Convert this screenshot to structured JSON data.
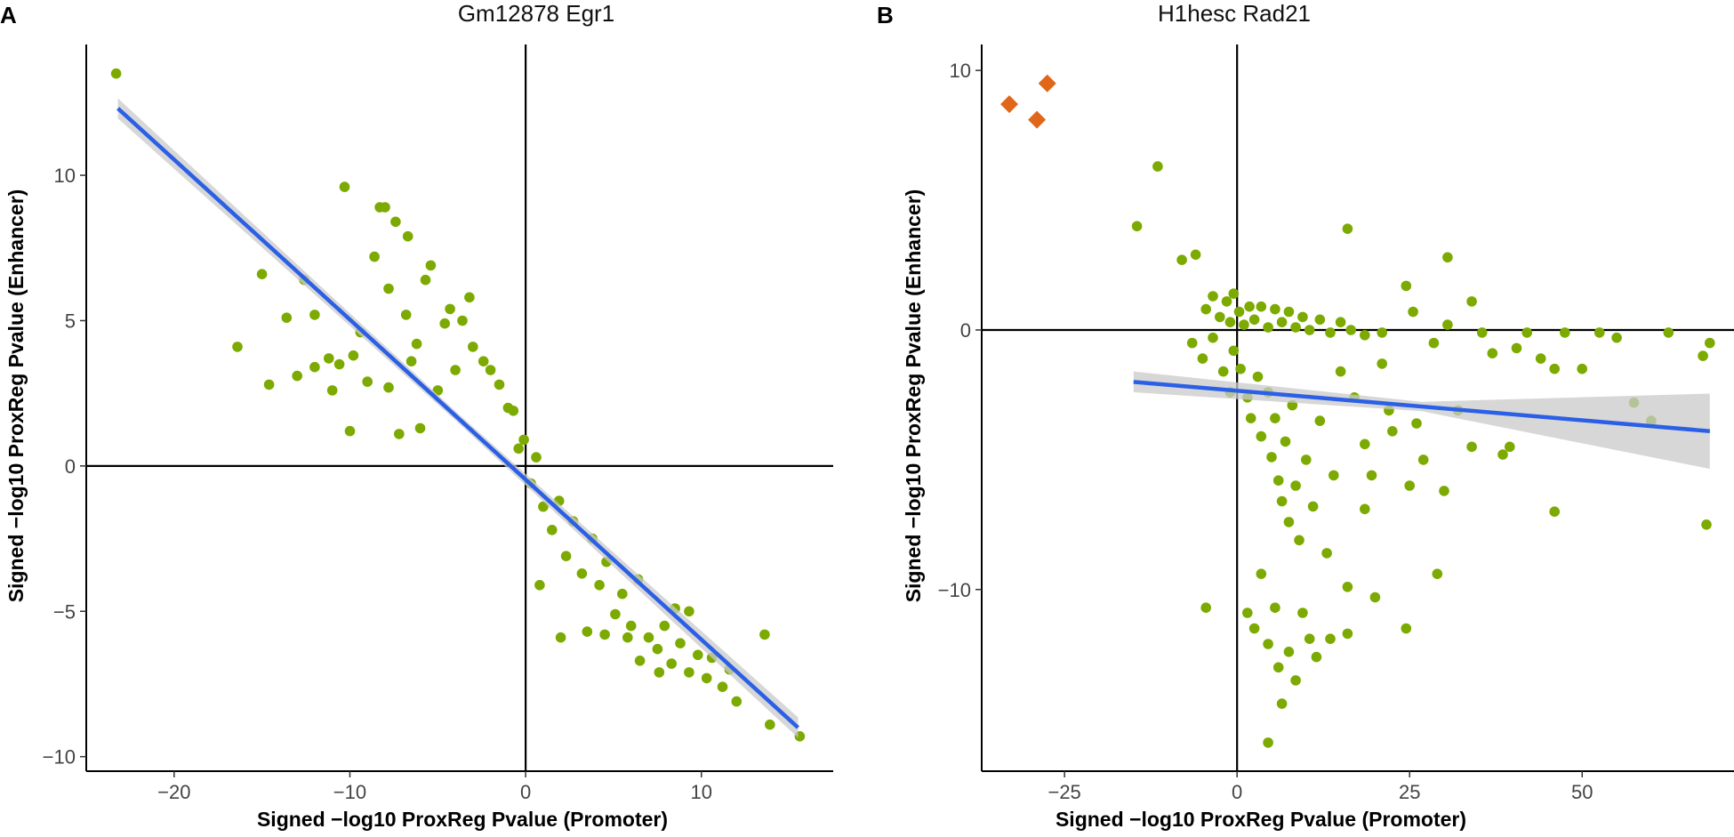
{
  "colors": {
    "point": "#7caa00",
    "outlier": "#e0661a",
    "fit_line": "#2a5fe6",
    "ci_band": "#c9c9c9",
    "axis": "#000000",
    "ref_line": "#000000"
  },
  "chart_data": [
    {
      "panel": "A",
      "type": "scatter",
      "title": "Gm12878 Egr1",
      "xlabel": "Signed −log10 ProxReg Pvalue (Promoter)",
      "ylabel": "Signed −log10 ProxReg Pvalue (Enhancer)",
      "xlim": [
        -25,
        17.5
      ],
      "ylim": [
        -10.5,
        14.5
      ],
      "x_ticks": [
        -20,
        -10,
        0,
        10
      ],
      "x_tick_labels": [
        "−20",
        "−10",
        "0",
        "10"
      ],
      "y_ticks": [
        -10,
        -5,
        0,
        5,
        10
      ],
      "y_tick_labels": [
        "−10",
        "−5",
        "0",
        "5",
        "10"
      ],
      "reference_lines": {
        "x": 0,
        "y": 0
      },
      "fit": {
        "x": [
          -23.2,
          15.5
        ],
        "y": [
          12.3,
          -9.0
        ],
        "ci_halfwidth_ends": 0.35
      },
      "outliers": [],
      "points": [
        [
          -23.3,
          13.5
        ],
        [
          -16.4,
          4.1
        ],
        [
          -15.0,
          6.6
        ],
        [
          -14.6,
          2.8
        ],
        [
          -13.6,
          5.1
        ],
        [
          -12.6,
          6.4
        ],
        [
          -12.0,
          5.2
        ],
        [
          -11.2,
          3.7
        ],
        [
          -11.0,
          2.6
        ],
        [
          -10.3,
          9.6
        ],
        [
          -10.0,
          1.2
        ],
        [
          -9.4,
          4.6
        ],
        [
          -9.0,
          2.9
        ],
        [
          -8.6,
          7.2
        ],
        [
          -8.3,
          8.9
        ],
        [
          -8.0,
          8.9
        ],
        [
          -7.8,
          6.1
        ],
        [
          -7.4,
          8.4
        ],
        [
          -7.2,
          1.1
        ],
        [
          -6.8,
          5.2
        ],
        [
          -6.5,
          3.6
        ],
        [
          -6.2,
          4.2
        ],
        [
          -6.0,
          1.3
        ],
        [
          -5.7,
          6.4
        ],
        [
          -5.4,
          6.9
        ],
        [
          -5.0,
          2.6
        ],
        [
          -4.6,
          4.9
        ],
        [
          -4.3,
          5.4
        ],
        [
          -4.0,
          3.3
        ],
        [
          -3.6,
          5.0
        ],
        [
          -3.2,
          5.8
        ],
        [
          -3.0,
          4.1
        ],
        [
          -2.4,
          3.6
        ],
        [
          -2.0,
          3.3
        ],
        [
          -1.5,
          2.8
        ],
        [
          -1.0,
          2.0
        ],
        [
          -0.7,
          1.9
        ],
        [
          -0.4,
          0.6
        ],
        [
          -0.1,
          0.9
        ],
        [
          0.3,
          -0.6
        ],
        [
          0.6,
          0.3
        ],
        [
          1.0,
          -1.4
        ],
        [
          1.5,
          -2.2
        ],
        [
          1.9,
          -1.2
        ],
        [
          2.3,
          -3.1
        ],
        [
          2.7,
          -1.9
        ],
        [
          3.2,
          -3.7
        ],
        [
          3.8,
          -2.5
        ],
        [
          4.2,
          -4.1
        ],
        [
          4.6,
          -3.3
        ],
        [
          5.1,
          -5.1
        ],
        [
          5.5,
          -4.4
        ],
        [
          6.0,
          -5.5
        ],
        [
          6.4,
          -3.9
        ],
        [
          7.0,
          -5.9
        ],
        [
          7.5,
          -6.3
        ],
        [
          7.9,
          -5.5
        ],
        [
          8.3,
          -6.8
        ],
        [
          8.8,
          -6.1
        ],
        [
          9.3,
          -7.1
        ],
        [
          9.8,
          -6.5
        ],
        [
          10.3,
          -7.3
        ],
        [
          10.6,
          -6.6
        ],
        [
          11.2,
          -7.6
        ],
        [
          11.6,
          -7.0
        ],
        [
          12.0,
          -8.1
        ],
        [
          2.0,
          -5.9
        ],
        [
          3.5,
          -5.7
        ],
        [
          4.5,
          -5.8
        ],
        [
          5.8,
          -5.9
        ],
        [
          6.5,
          -6.7
        ],
        [
          7.6,
          -7.1
        ],
        [
          9.3,
          -5.0
        ],
        [
          8.5,
          -4.9
        ],
        [
          13.6,
          -5.8
        ],
        [
          13.9,
          -8.9
        ],
        [
          15.6,
          -9.3
        ],
        [
          0.8,
          -4.1
        ],
        [
          -9.8,
          3.8
        ],
        [
          -10.6,
          3.5
        ],
        [
          -13.0,
          3.1
        ],
        [
          -12.0,
          3.4
        ],
        [
          -7.8,
          2.7
        ],
        [
          -6.7,
          7.9
        ]
      ]
    },
    {
      "panel": "B",
      "type": "scatter",
      "title": "H1hesc Rad21",
      "xlabel": "Signed −log10 ProxReg Pvalue (Promoter)",
      "ylabel": "Signed −log10 ProxReg Pvalue (Enhancer)",
      "xlim": [
        -37,
        72
      ],
      "ylim": [
        -17,
        11
      ],
      "x_ticks": [
        -25,
        0,
        25,
        50
      ],
      "x_tick_labels": [
        "−25",
        "0",
        "25",
        "50"
      ],
      "y_ticks": [
        -10,
        0,
        10
      ],
      "y_tick_labels": [
        "−10",
        "0",
        "10"
      ],
      "reference_lines": {
        "x": 0,
        "y": 0
      },
      "fit": {
        "x": [
          -15,
          68.5
        ],
        "y": [
          -2.0,
          -3.9
        ],
        "ci_halfwidth_ends": 0.4,
        "ci_halfwidth_right": 1.45
      },
      "outliers": [
        [
          -33,
          8.7
        ],
        [
          -27.5,
          9.5
        ],
        [
          -29,
          8.1
        ]
      ],
      "points": [
        [
          -11.5,
          6.3
        ],
        [
          -14.5,
          4.0
        ],
        [
          -8.0,
          2.7
        ],
        [
          -6.0,
          2.9
        ],
        [
          -4.5,
          0.8
        ],
        [
          -3.5,
          1.3
        ],
        [
          -2.5,
          0.5
        ],
        [
          -1.5,
          1.1
        ],
        [
          -1.0,
          0.3
        ],
        [
          -0.5,
          1.4
        ],
        [
          0.3,
          0.7
        ],
        [
          1.0,
          0.2
        ],
        [
          1.8,
          0.9
        ],
        [
          2.5,
          0.4
        ],
        [
          3.5,
          0.9
        ],
        [
          4.5,
          0.1
        ],
        [
          5.5,
          0.8
        ],
        [
          6.5,
          0.3
        ],
        [
          7.5,
          0.7
        ],
        [
          8.5,
          0.1
        ],
        [
          9.5,
          0.5
        ],
        [
          10.5,
          0.0
        ],
        [
          12.0,
          0.4
        ],
        [
          13.5,
          -0.1
        ],
        [
          15.0,
          0.3
        ],
        [
          16.5,
          0.0
        ],
        [
          18.5,
          -0.2
        ],
        [
          21.0,
          -0.1
        ],
        [
          -6.5,
          -0.5
        ],
        [
          -5.0,
          -1.1
        ],
        [
          -3.5,
          -0.3
        ],
        [
          -2.0,
          -1.6
        ],
        [
          -1.0,
          -2.4
        ],
        [
          -0.5,
          -0.8
        ],
        [
          0.5,
          -1.5
        ],
        [
          1.5,
          -2.6
        ],
        [
          2.0,
          -3.4
        ],
        [
          3.0,
          -1.8
        ],
        [
          3.5,
          -4.1
        ],
        [
          4.5,
          -2.4
        ],
        [
          5.0,
          -4.9
        ],
        [
          5.5,
          -3.4
        ],
        [
          6.0,
          -5.8
        ],
        [
          6.5,
          -6.6
        ],
        [
          7.0,
          -4.3
        ],
        [
          7.5,
          -7.4
        ],
        [
          8.0,
          -2.9
        ],
        [
          8.5,
          -6.0
        ],
        [
          9.0,
          -8.1
        ],
        [
          10.0,
          -5.0
        ],
        [
          11.0,
          -6.8
        ],
        [
          12.0,
          -3.5
        ],
        [
          13.0,
          -8.6
        ],
        [
          14.0,
          -5.6
        ],
        [
          15.0,
          -1.6
        ],
        [
          16.0,
          -9.9
        ],
        [
          17.0,
          -2.6
        ],
        [
          18.5,
          -4.4
        ],
        [
          19.5,
          -5.6
        ],
        [
          20.0,
          -10.3
        ],
        [
          21.0,
          -1.3
        ],
        [
          22.0,
          -3.1
        ],
        [
          1.5,
          -10.9
        ],
        [
          2.5,
          -11.5
        ],
        [
          3.5,
          -9.4
        ],
        [
          4.5,
          -12.1
        ],
        [
          5.5,
          -10.7
        ],
        [
          6.0,
          -13.0
        ],
        [
          6.5,
          -14.4
        ],
        [
          7.5,
          -12.4
        ],
        [
          8.5,
          -13.5
        ],
        [
          9.5,
          -10.9
        ],
        [
          10.5,
          -11.9
        ],
        [
          11.5,
          -12.6
        ],
        [
          13.5,
          -11.9
        ],
        [
          16.0,
          -11.7
        ],
        [
          4.5,
          -15.9
        ],
        [
          -4.5,
          -10.7
        ],
        [
          16.0,
          3.9
        ],
        [
          24.5,
          1.7
        ],
        [
          25.5,
          0.7
        ],
        [
          28.5,
          -0.5
        ],
        [
          30.5,
          2.8
        ],
        [
          30.5,
          0.2
        ],
        [
          34.0,
          1.1
        ],
        [
          35.5,
          -0.1
        ],
        [
          37.0,
          -0.9
        ],
        [
          39.5,
          -4.5
        ],
        [
          40.5,
          -0.7
        ],
        [
          42.0,
          -0.1
        ],
        [
          44.0,
          -1.1
        ],
        [
          46.0,
          -1.5
        ],
        [
          47.5,
          -0.1
        ],
        [
          50.0,
          -1.5
        ],
        [
          52.5,
          -0.1
        ],
        [
          55.0,
          -0.3
        ],
        [
          57.5,
          -2.8
        ],
        [
          60.0,
          -3.5
        ],
        [
          62.5,
          -0.1
        ],
        [
          67.5,
          -1.0
        ],
        [
          68.5,
          -0.5
        ],
        [
          68.0,
          -7.5
        ],
        [
          46.0,
          -7.0
        ],
        [
          29.0,
          -9.4
        ],
        [
          24.5,
          -11.5
        ],
        [
          25.0,
          -6.0
        ],
        [
          27.0,
          -5.0
        ],
        [
          30.0,
          -6.2
        ],
        [
          32.0,
          -3.1
        ],
        [
          34.0,
          -4.5
        ],
        [
          38.5,
          -4.8
        ],
        [
          22.5,
          -3.9
        ],
        [
          18.5,
          -6.9
        ],
        [
          26.0,
          -3.6
        ]
      ]
    }
  ]
}
